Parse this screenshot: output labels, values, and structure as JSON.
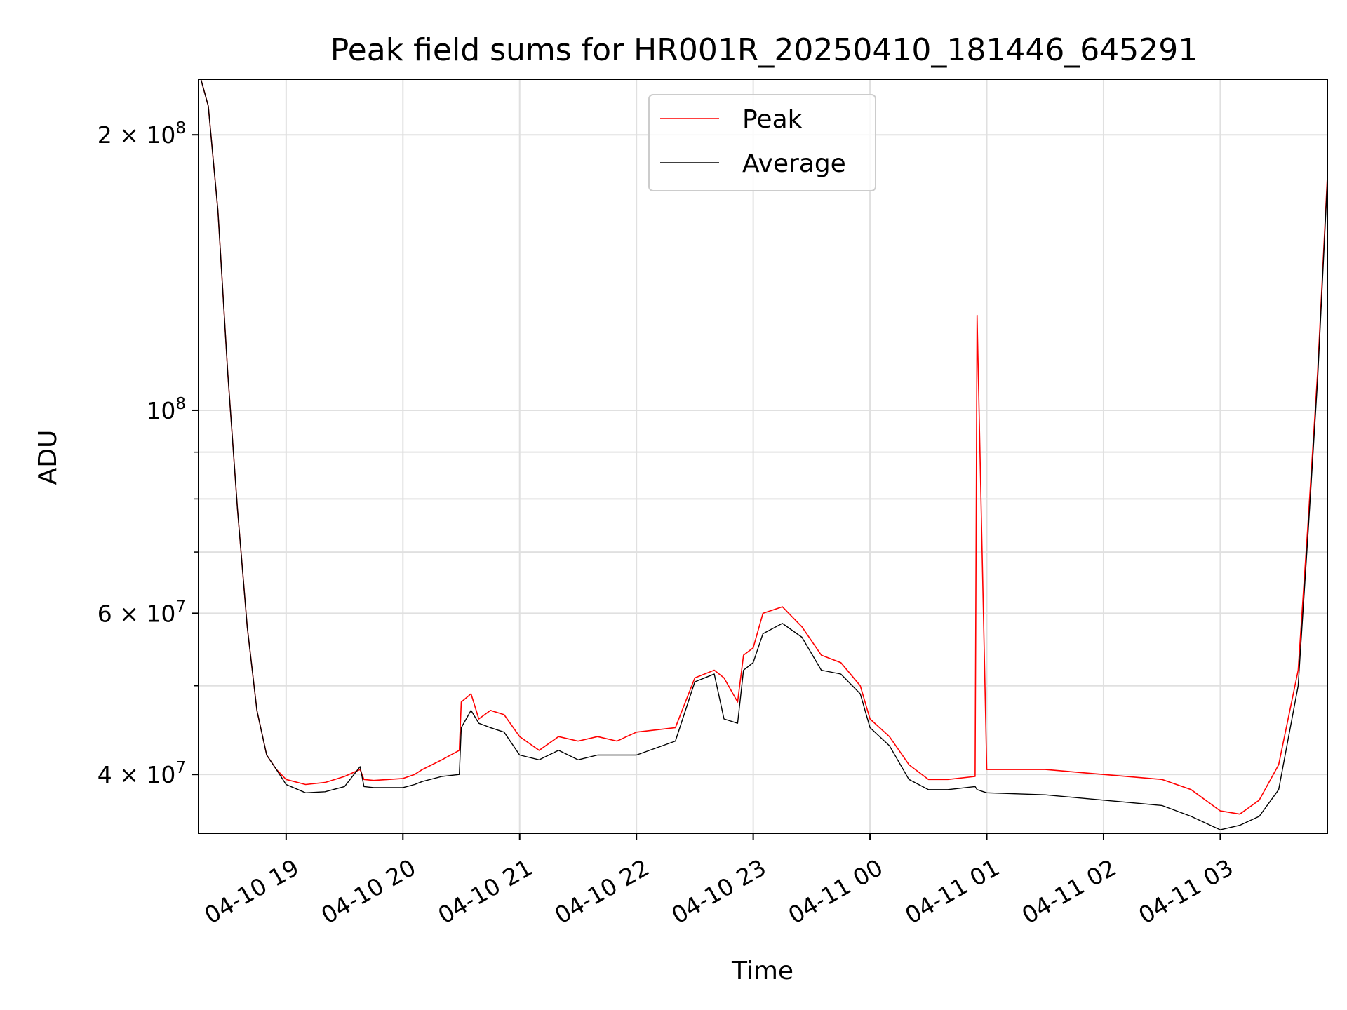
{
  "chart_data": {
    "type": "line",
    "title": "Peak field sums for HR001R_20250410_181446_645291",
    "xlabel": "Time",
    "ylabel": "ADU",
    "yscale": "log",
    "grid": true,
    "legend_position": "upper center",
    "xlim": [
      "2025-04-10 18:15",
      "2025-04-11 03:55"
    ],
    "ylim": [
      34500000,
      230000000
    ],
    "x_ticks": [
      "04-10 19",
      "04-10 20",
      "04-10 21",
      "04-10 22",
      "04-10 23",
      "04-11 00",
      "04-11 01",
      "04-11 02",
      "04-11 03"
    ],
    "y_ticks": [
      {
        "value": 40000000,
        "label_mantissa": "4 × 10",
        "label_exp": "7"
      },
      {
        "value": 60000000,
        "label_mantissa": "6 × 10",
        "label_exp": "7"
      },
      {
        "value": 100000000,
        "label_mantissa": "10",
        "label_exp": "8"
      },
      {
        "value": 200000000,
        "label_mantissa": "2 × 10",
        "label_exp": "8"
      }
    ],
    "series": [
      {
        "name": "Peak",
        "color": "#ff0000",
        "x": [
          "2025-04-10 18:15",
          "2025-04-10 18:20",
          "2025-04-10 18:25",
          "2025-04-10 18:30",
          "2025-04-10 18:35",
          "2025-04-10 18:40",
          "2025-04-10 18:45",
          "2025-04-10 18:50",
          "2025-04-10 18:55",
          "2025-04-10 19:00",
          "2025-04-10 19:10",
          "2025-04-10 19:20",
          "2025-04-10 19:30",
          "2025-04-10 19:38",
          "2025-04-10 19:40",
          "2025-04-10 19:45",
          "2025-04-10 20:00",
          "2025-04-10 20:06",
          "2025-04-10 20:10",
          "2025-04-10 20:20",
          "2025-04-10 20:29",
          "2025-04-10 20:30",
          "2025-04-10 20:35",
          "2025-04-10 20:39",
          "2025-04-10 20:45",
          "2025-04-10 20:52",
          "2025-04-10 21:00",
          "2025-04-10 21:10",
          "2025-04-10 21:20",
          "2025-04-10 21:30",
          "2025-04-10 21:40",
          "2025-04-10 21:50",
          "2025-04-10 22:00",
          "2025-04-10 22:20",
          "2025-04-10 22:30",
          "2025-04-10 22:40",
          "2025-04-10 22:45",
          "2025-04-10 22:52",
          "2025-04-10 22:55",
          "2025-04-10 23:00",
          "2025-04-10 23:05",
          "2025-04-10 23:15",
          "2025-04-10 23:25",
          "2025-04-10 23:35",
          "2025-04-10 23:45",
          "2025-04-10 23:55",
          "2025-04-11 00:00",
          "2025-04-11 00:10",
          "2025-04-11 00:20",
          "2025-04-11 00:30",
          "2025-04-11 00:40",
          "2025-04-11 00:54",
          "2025-04-11 00:55",
          "2025-04-11 01:00",
          "2025-04-11 01:30",
          "2025-04-11 02:00",
          "2025-04-11 02:30",
          "2025-04-11 02:45",
          "2025-04-11 03:00",
          "2025-04-11 03:10",
          "2025-04-11 03:20",
          "2025-04-11 03:30",
          "2025-04-11 03:40",
          "2025-04-11 03:45",
          "2025-04-11 03:50",
          "2025-04-11 03:55"
        ],
        "values": [
          235000000,
          215000000,
          165000000,
          110000000,
          78000000,
          58000000,
          47000000,
          42000000,
          40500000,
          39500000,
          39000000,
          39200000,
          39800000,
          40500000,
          39500000,
          39400000,
          39600000,
          40000000,
          40500000,
          41500000,
          42500000,
          48000000,
          49000000,
          46000000,
          47000000,
          46500000,
          44000000,
          42500000,
          44000000,
          43500000,
          44000000,
          43500000,
          44500000,
          45000000,
          51000000,
          52000000,
          51000000,
          48000000,
          54000000,
          55000000,
          60000000,
          61000000,
          58000000,
          54000000,
          53000000,
          50000000,
          46000000,
          44000000,
          41000000,
          39500000,
          39500000,
          39800000,
          127000000,
          40500000,
          40500000,
          40000000,
          39500000,
          38500000,
          36500000,
          36200000,
          37500000,
          41000000,
          52000000,
          75000000,
          110000000,
          180000000
        ]
      },
      {
        "name": "Average",
        "color": "#000000",
        "x": [
          "2025-04-10 18:15",
          "2025-04-10 18:20",
          "2025-04-10 18:25",
          "2025-04-10 18:30",
          "2025-04-10 18:35",
          "2025-04-10 18:40",
          "2025-04-10 18:45",
          "2025-04-10 18:50",
          "2025-04-10 18:55",
          "2025-04-10 19:00",
          "2025-04-10 19:10",
          "2025-04-10 19:20",
          "2025-04-10 19:30",
          "2025-04-10 19:38",
          "2025-04-10 19:40",
          "2025-04-10 19:45",
          "2025-04-10 20:00",
          "2025-04-10 20:06",
          "2025-04-10 20:10",
          "2025-04-10 20:20",
          "2025-04-10 20:29",
          "2025-04-10 20:30",
          "2025-04-10 20:35",
          "2025-04-10 20:39",
          "2025-04-10 20:45",
          "2025-04-10 20:52",
          "2025-04-10 21:00",
          "2025-04-10 21:10",
          "2025-04-10 21:20",
          "2025-04-10 21:30",
          "2025-04-10 21:40",
          "2025-04-10 21:50",
          "2025-04-10 22:00",
          "2025-04-10 22:20",
          "2025-04-10 22:30",
          "2025-04-10 22:40",
          "2025-04-10 22:45",
          "2025-04-10 22:52",
          "2025-04-10 22:55",
          "2025-04-10 23:00",
          "2025-04-10 23:05",
          "2025-04-10 23:15",
          "2025-04-10 23:25",
          "2025-04-10 23:35",
          "2025-04-10 23:45",
          "2025-04-10 23:55",
          "2025-04-11 00:00",
          "2025-04-11 00:10",
          "2025-04-11 00:20",
          "2025-04-11 00:30",
          "2025-04-11 00:40",
          "2025-04-11 00:54",
          "2025-04-11 00:55",
          "2025-04-11 01:00",
          "2025-04-11 01:30",
          "2025-04-11 02:00",
          "2025-04-11 02:30",
          "2025-04-11 02:45",
          "2025-04-11 03:00",
          "2025-04-11 03:10",
          "2025-04-11 03:20",
          "2025-04-11 03:30",
          "2025-04-11 03:40",
          "2025-04-11 03:45",
          "2025-04-11 03:50",
          "2025-04-11 03:55"
        ],
        "values": [
          235000000,
          215000000,
          165000000,
          110000000,
          78000000,
          58000000,
          47000000,
          42000000,
          40500000,
          39000000,
          38200000,
          38300000,
          38800000,
          40800000,
          38800000,
          38700000,
          38700000,
          39000000,
          39300000,
          39800000,
          40000000,
          45000000,
          47000000,
          45500000,
          45000000,
          44500000,
          42000000,
          41500000,
          42500000,
          41500000,
          42000000,
          42000000,
          42000000,
          43500000,
          50500000,
          51500000,
          46000000,
          45500000,
          52000000,
          53000000,
          57000000,
          58500000,
          56500000,
          52000000,
          51500000,
          49000000,
          45000000,
          43000000,
          39500000,
          38500000,
          38500000,
          38800000,
          38500000,
          38200000,
          38000000,
          37500000,
          37000000,
          36000000,
          34800000,
          35200000,
          36000000,
          38500000,
          50000000,
          73000000,
          108000000,
          178000000
        ]
      }
    ]
  }
}
